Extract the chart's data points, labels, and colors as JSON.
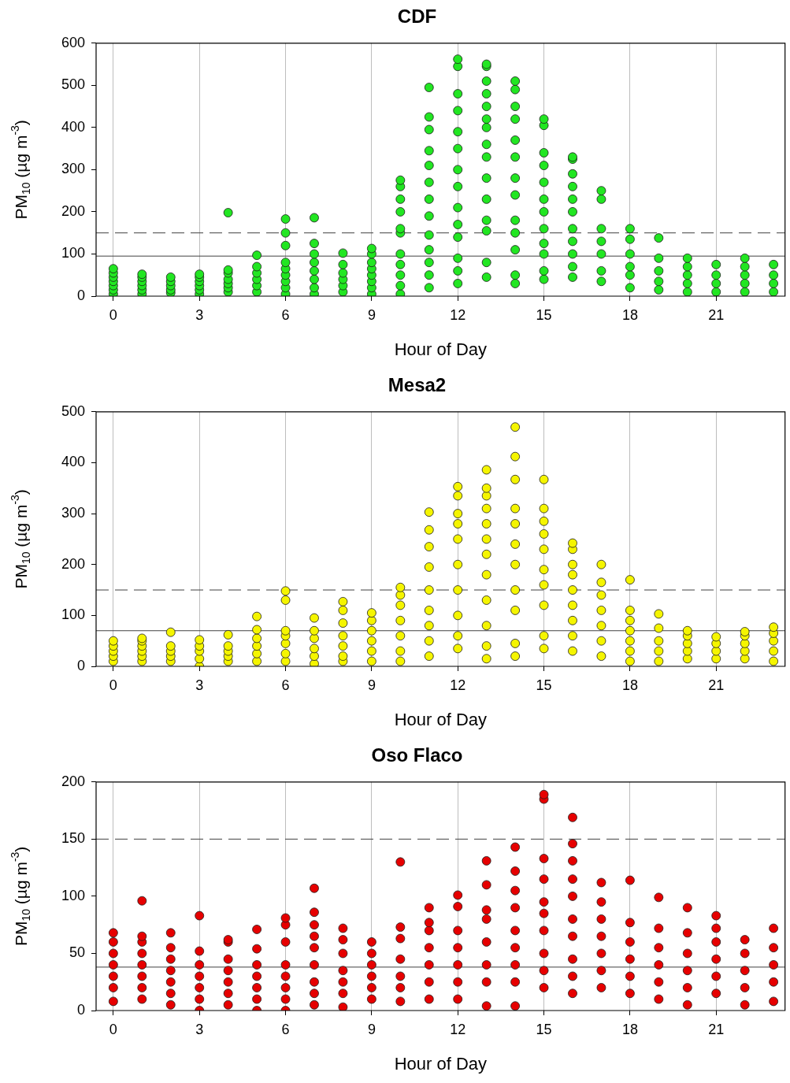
{
  "chart_data": [
    {
      "type": "scatter",
      "title": "CDF",
      "xlabel": "Hour of Day",
      "ylabel": "PM$_{10}$ (µg m$^{-3}$)",
      "xlim": [
        -0.6,
        23.4
      ],
      "xticks": [
        0,
        3,
        6,
        9,
        12,
        15,
        18,
        21
      ],
      "ylim": [
        0,
        600
      ],
      "yticks": [
        0,
        100,
        200,
        300,
        400,
        500,
        600
      ],
      "grid": "x",
      "legend": false,
      "marker": "circle",
      "ref_lines": [
        {
          "axis": "y",
          "value": 95,
          "color": "#404040",
          "line_style": "solid"
        },
        {
          "axis": "y",
          "value": 150,
          "color": "#404040",
          "line_style": "dashed"
        }
      ],
      "series": [
        {
          "color": "#22e622",
          "x": [
            0,
            0,
            0,
            0,
            0,
            0,
            0,
            1,
            1,
            1,
            1,
            1,
            1,
            2,
            2,
            2,
            2,
            2,
            3,
            3,
            3,
            3,
            3,
            3,
            4,
            4,
            4,
            4,
            4,
            4,
            4,
            5,
            5,
            5,
            5,
            5,
            5,
            6,
            6,
            6,
            6,
            6,
            6,
            6,
            6,
            6,
            7,
            7,
            7,
            7,
            7,
            7,
            7,
            7,
            8,
            8,
            8,
            8,
            8,
            8,
            9,
            9,
            9,
            9,
            9,
            9,
            9,
            9,
            10,
            10,
            10,
            10,
            10,
            10,
            10,
            10,
            10,
            10,
            10,
            11,
            11,
            11,
            11,
            11,
            11,
            11,
            11,
            11,
            11,
            11,
            11,
            11,
            12,
            12,
            12,
            12,
            12,
            12,
            12,
            12,
            12,
            12,
            12,
            12,
            12,
            12,
            13,
            13,
            13,
            13,
            13,
            13,
            13,
            13,
            13,
            13,
            13,
            13,
            13,
            13,
            13,
            14,
            14,
            14,
            14,
            14,
            14,
            14,
            14,
            14,
            14,
            14,
            14,
            14,
            15,
            15,
            15,
            15,
            15,
            15,
            15,
            15,
            15,
            15,
            15,
            15,
            16,
            16,
            16,
            16,
            16,
            16,
            16,
            16,
            16,
            16,
            16,
            17,
            17,
            17,
            17,
            17,
            17,
            17,
            18,
            18,
            18,
            18,
            18,
            18,
            19,
            19,
            19,
            19,
            19,
            20,
            20,
            20,
            20,
            20,
            21,
            21,
            21,
            21,
            22,
            22,
            22,
            22,
            22,
            23,
            23,
            23,
            23
          ],
          "values": [
            5,
            15,
            25,
            35,
            45,
            55,
            65,
            5,
            15,
            25,
            35,
            45,
            52,
            8,
            15,
            25,
            35,
            45,
            5,
            15,
            25,
            35,
            45,
            52,
            10,
            20,
            30,
            40,
            55,
            62,
            198,
            10,
            25,
            40,
            55,
            70,
            97,
            5,
            20,
            35,
            50,
            65,
            80,
            120,
            150,
            183,
            5,
            20,
            40,
            60,
            80,
            100,
            125,
            186,
            10,
            25,
            40,
            55,
            75,
            102,
            5,
            20,
            35,
            50,
            65,
            80,
            100,
            113,
            5,
            25,
            50,
            75,
            100,
            150,
            160,
            200,
            230,
            260,
            275,
            20,
            50,
            80,
            110,
            145,
            190,
            230,
            270,
            310,
            345,
            395,
            425,
            495,
            30,
            60,
            90,
            140,
            170,
            210,
            260,
            300,
            350,
            390,
            440,
            480,
            545,
            562,
            45,
            80,
            155,
            180,
            230,
            280,
            330,
            360,
            400,
            420,
            450,
            480,
            510,
            545,
            550,
            30,
            50,
            110,
            150,
            180,
            240,
            280,
            330,
            370,
            420,
            450,
            490,
            510,
            40,
            60,
            100,
            125,
            160,
            200,
            230,
            270,
            310,
            340,
            405,
            420,
            45,
            70,
            100,
            130,
            160,
            200,
            230,
            260,
            290,
            325,
            330,
            35,
            60,
            100,
            130,
            160,
            230,
            250,
            20,
            50,
            70,
            100,
            135,
            160,
            15,
            35,
            60,
            90,
            138,
            10,
            30,
            50,
            70,
            90,
            10,
            30,
            50,
            75,
            10,
            30,
            50,
            70,
            90,
            10,
            30,
            50,
            75
          ]
        }
      ]
    },
    {
      "type": "scatter",
      "title": "Mesa2",
      "xlabel": "Hour of Day",
      "ylabel": "PM$_{10}$ (µg m$^{-3}$)",
      "xlim": [
        -0.6,
        23.4
      ],
      "xticks": [
        0,
        3,
        6,
        9,
        12,
        15,
        18,
        21
      ],
      "ylim": [
        0,
        500
      ],
      "yticks": [
        0,
        100,
        200,
        300,
        400,
        500
      ],
      "grid": "x",
      "legend": false,
      "marker": "circle",
      "ref_lines": [
        {
          "axis": "y",
          "value": 70,
          "color": "#404040",
          "line_style": "solid"
        },
        {
          "axis": "y",
          "value": 150,
          "color": "#404040",
          "line_style": "dashed"
        }
      ],
      "series": [
        {
          "color": "#f5f500",
          "x": [
            0,
            0,
            0,
            0,
            0,
            1,
            1,
            1,
            1,
            1,
            1,
            2,
            2,
            2,
            2,
            2,
            3,
            3,
            3,
            3,
            3,
            4,
            4,
            4,
            4,
            4,
            5,
            5,
            5,
            5,
            5,
            5,
            6,
            6,
            6,
            6,
            6,
            6,
            6,
            7,
            7,
            7,
            7,
            7,
            7,
            8,
            8,
            8,
            8,
            8,
            8,
            8,
            9,
            9,
            9,
            9,
            9,
            9,
            10,
            10,
            10,
            10,
            10,
            10,
            10,
            11,
            11,
            11,
            11,
            11,
            11,
            11,
            11,
            11,
            12,
            12,
            12,
            12,
            12,
            12,
            12,
            12,
            12,
            12,
            13,
            13,
            13,
            13,
            13,
            13,
            13,
            13,
            13,
            13,
            13,
            13,
            14,
            14,
            14,
            14,
            14,
            14,
            14,
            14,
            14,
            14,
            14,
            15,
            15,
            15,
            15,
            15,
            15,
            15,
            15,
            15,
            15,
            16,
            16,
            16,
            16,
            16,
            16,
            16,
            16,
            16,
            17,
            17,
            17,
            17,
            17,
            17,
            17,
            18,
            18,
            18,
            18,
            18,
            18,
            18,
            19,
            19,
            19,
            19,
            19,
            20,
            20,
            20,
            20,
            20,
            21,
            21,
            21,
            21,
            22,
            22,
            22,
            22,
            22,
            23,
            23,
            23,
            23,
            23
          ],
          "values": [
            10,
            20,
            30,
            40,
            50,
            10,
            20,
            30,
            40,
            50,
            55,
            10,
            20,
            30,
            40,
            67,
            0,
            15,
            30,
            40,
            52,
            10,
            20,
            30,
            40,
            62,
            10,
            25,
            40,
            55,
            72,
            98,
            10,
            25,
            45,
            60,
            70,
            130,
            148,
            5,
            20,
            35,
            55,
            70,
            95,
            10,
            20,
            40,
            60,
            85,
            110,
            127,
            10,
            30,
            50,
            70,
            90,
            105,
            10,
            30,
            60,
            90,
            120,
            140,
            155,
            20,
            50,
            80,
            110,
            150,
            195,
            235,
            268,
            303,
            35,
            60,
            100,
            150,
            200,
            250,
            280,
            300,
            335,
            353,
            15,
            40,
            80,
            130,
            180,
            220,
            250,
            280,
            310,
            335,
            350,
            386,
            20,
            45,
            110,
            150,
            200,
            240,
            280,
            310,
            367,
            412,
            470,
            35,
            60,
            120,
            160,
            190,
            230,
            260,
            285,
            310,
            367,
            30,
            60,
            90,
            120,
            150,
            180,
            200,
            230,
            242,
            20,
            50,
            80,
            110,
            140,
            165,
            200,
            10,
            30,
            50,
            70,
            90,
            110,
            170,
            10,
            30,
            50,
            75,
            103,
            15,
            30,
            45,
            60,
            70,
            15,
            30,
            45,
            58,
            15,
            30,
            45,
            60,
            68,
            10,
            30,
            50,
            65,
            77
          ]
        }
      ]
    },
    {
      "type": "scatter",
      "title": "Oso Flaco",
      "xlabel": "Hour of Day",
      "ylabel": "PM$_{10}$ (µg m$^{-3}$)",
      "xlim": [
        -0.6,
        23.4
      ],
      "xticks": [
        0,
        3,
        6,
        9,
        12,
        15,
        18,
        21
      ],
      "ylim": [
        0,
        200
      ],
      "yticks": [
        0,
        50,
        100,
        150,
        200
      ],
      "grid": "x",
      "legend": false,
      "marker": "circle",
      "ref_lines": [
        {
          "axis": "y",
          "value": 38,
          "color": "#404040",
          "line_style": "solid"
        },
        {
          "axis": "y",
          "value": 150,
          "color": "#404040",
          "line_style": "dashed"
        }
      ],
      "series": [
        {
          "color": "#e60000",
          "x": [
            0,
            0,
            0,
            0,
            0,
            0,
            0,
            1,
            1,
            1,
            1,
            1,
            1,
            1,
            1,
            2,
            2,
            2,
            2,
            2,
            2,
            2,
            3,
            3,
            3,
            3,
            3,
            3,
            3,
            4,
            4,
            4,
            4,
            4,
            4,
            4,
            5,
            5,
            5,
            5,
            5,
            5,
            5,
            6,
            6,
            6,
            6,
            6,
            6,
            6,
            6,
            7,
            7,
            7,
            7,
            7,
            7,
            7,
            7,
            7,
            8,
            8,
            8,
            8,
            8,
            8,
            8,
            9,
            9,
            9,
            9,
            9,
            9,
            10,
            10,
            10,
            10,
            10,
            10,
            10,
            11,
            11,
            11,
            11,
            11,
            11,
            11,
            12,
            12,
            12,
            12,
            12,
            12,
            12,
            13,
            13,
            13,
            13,
            13,
            13,
            13,
            13,
            14,
            14,
            14,
            14,
            14,
            14,
            14,
            14,
            14,
            15,
            15,
            15,
            15,
            15,
            15,
            15,
            15,
            15,
            15,
            16,
            16,
            16,
            16,
            16,
            16,
            16,
            16,
            16,
            16,
            17,
            17,
            17,
            17,
            17,
            17,
            17,
            18,
            18,
            18,
            18,
            18,
            18,
            19,
            19,
            19,
            19,
            19,
            19,
            20,
            20,
            20,
            20,
            20,
            20,
            21,
            21,
            21,
            21,
            21,
            21,
            22,
            22,
            22,
            22,
            22,
            23,
            23,
            23,
            23,
            23
          ],
          "values": [
            8,
            20,
            30,
            40,
            50,
            60,
            68,
            10,
            20,
            30,
            40,
            50,
            60,
            65,
            96,
            5,
            15,
            25,
            35,
            45,
            55,
            68,
            0,
            10,
            20,
            30,
            40,
            52,
            83,
            5,
            15,
            25,
            35,
            45,
            60,
            62,
            0,
            10,
            20,
            30,
            40,
            54,
            71,
            0,
            10,
            20,
            30,
            40,
            60,
            75,
            81,
            5,
            15,
            25,
            40,
            55,
            65,
            75,
            86,
            107,
            3,
            15,
            25,
            35,
            50,
            62,
            72,
            10,
            20,
            30,
            40,
            50,
            60,
            8,
            20,
            30,
            45,
            63,
            73,
            130,
            10,
            25,
            40,
            55,
            70,
            77,
            90,
            10,
            25,
            40,
            55,
            70,
            91,
            101,
            4,
            25,
            40,
            60,
            80,
            88,
            110,
            131,
            4,
            25,
            40,
            55,
            70,
            90,
            105,
            122,
            143,
            20,
            35,
            50,
            70,
            85,
            95,
            115,
            133,
            185,
            189,
            15,
            30,
            45,
            65,
            80,
            100,
            115,
            131,
            146,
            169,
            20,
            35,
            50,
            65,
            80,
            95,
            112,
            15,
            30,
            45,
            60,
            77,
            114,
            10,
            25,
            40,
            55,
            72,
            99,
            5,
            20,
            35,
            50,
            68,
            90,
            15,
            30,
            45,
            60,
            72,
            83,
            5,
            20,
            35,
            50,
            62,
            8,
            25,
            40,
            55,
            72
          ]
        }
      ]
    }
  ]
}
